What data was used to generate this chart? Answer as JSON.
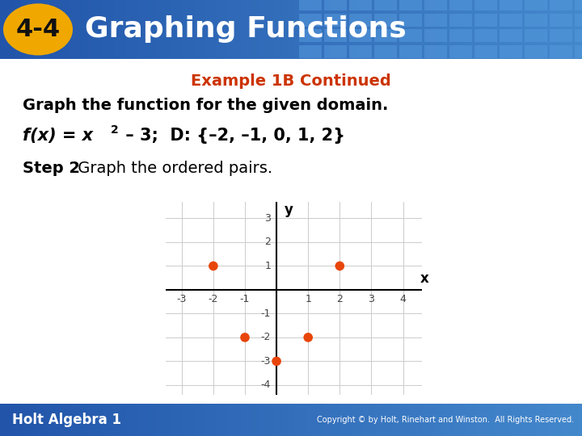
{
  "title_badge": "4-4",
  "title_text": "Graphing Functions",
  "example_title": "Example 1B Continued",
  "line1": "Graph the function for the given domain.",
  "line2_pre": "f(x) = x",
  "line2_sup": "2",
  "line2_post": " – 3;  D: {–2, –1, 0, 1, 2}",
  "step_label": "Step 2",
  "step_text": " Graph the ordered pairs.",
  "points_x": [
    -2,
    -1,
    0,
    1,
    2
  ],
  "points_y": [
    1,
    -2,
    -3,
    -2,
    1
  ],
  "dot_color": "#E8450A",
  "xlim": [
    -3.5,
    4.6
  ],
  "ylim": [
    -4.4,
    3.7
  ],
  "xlabel": "x",
  "ylabel": "y",
  "header_bg_left": "#2255AA",
  "header_bg_right": "#4488CC",
  "badge_bg": "#F0A800",
  "footer_bg": "#2255AA",
  "content_bg": "#FFFFFF",
  "grid_color": "#CCCCCC",
  "axis_color": "#000000",
  "tick_label_color": "#444444",
  "example_title_color": "#CC3300",
  "header_title_color": "#FFFFFF",
  "footer_text": "Holt Algebra 1",
  "copyright_text": "Copyright © by Holt, Rinehart and Winston.  All Rights Reserved.",
  "dot_size": 70,
  "header_grid_color": "#5599DD"
}
